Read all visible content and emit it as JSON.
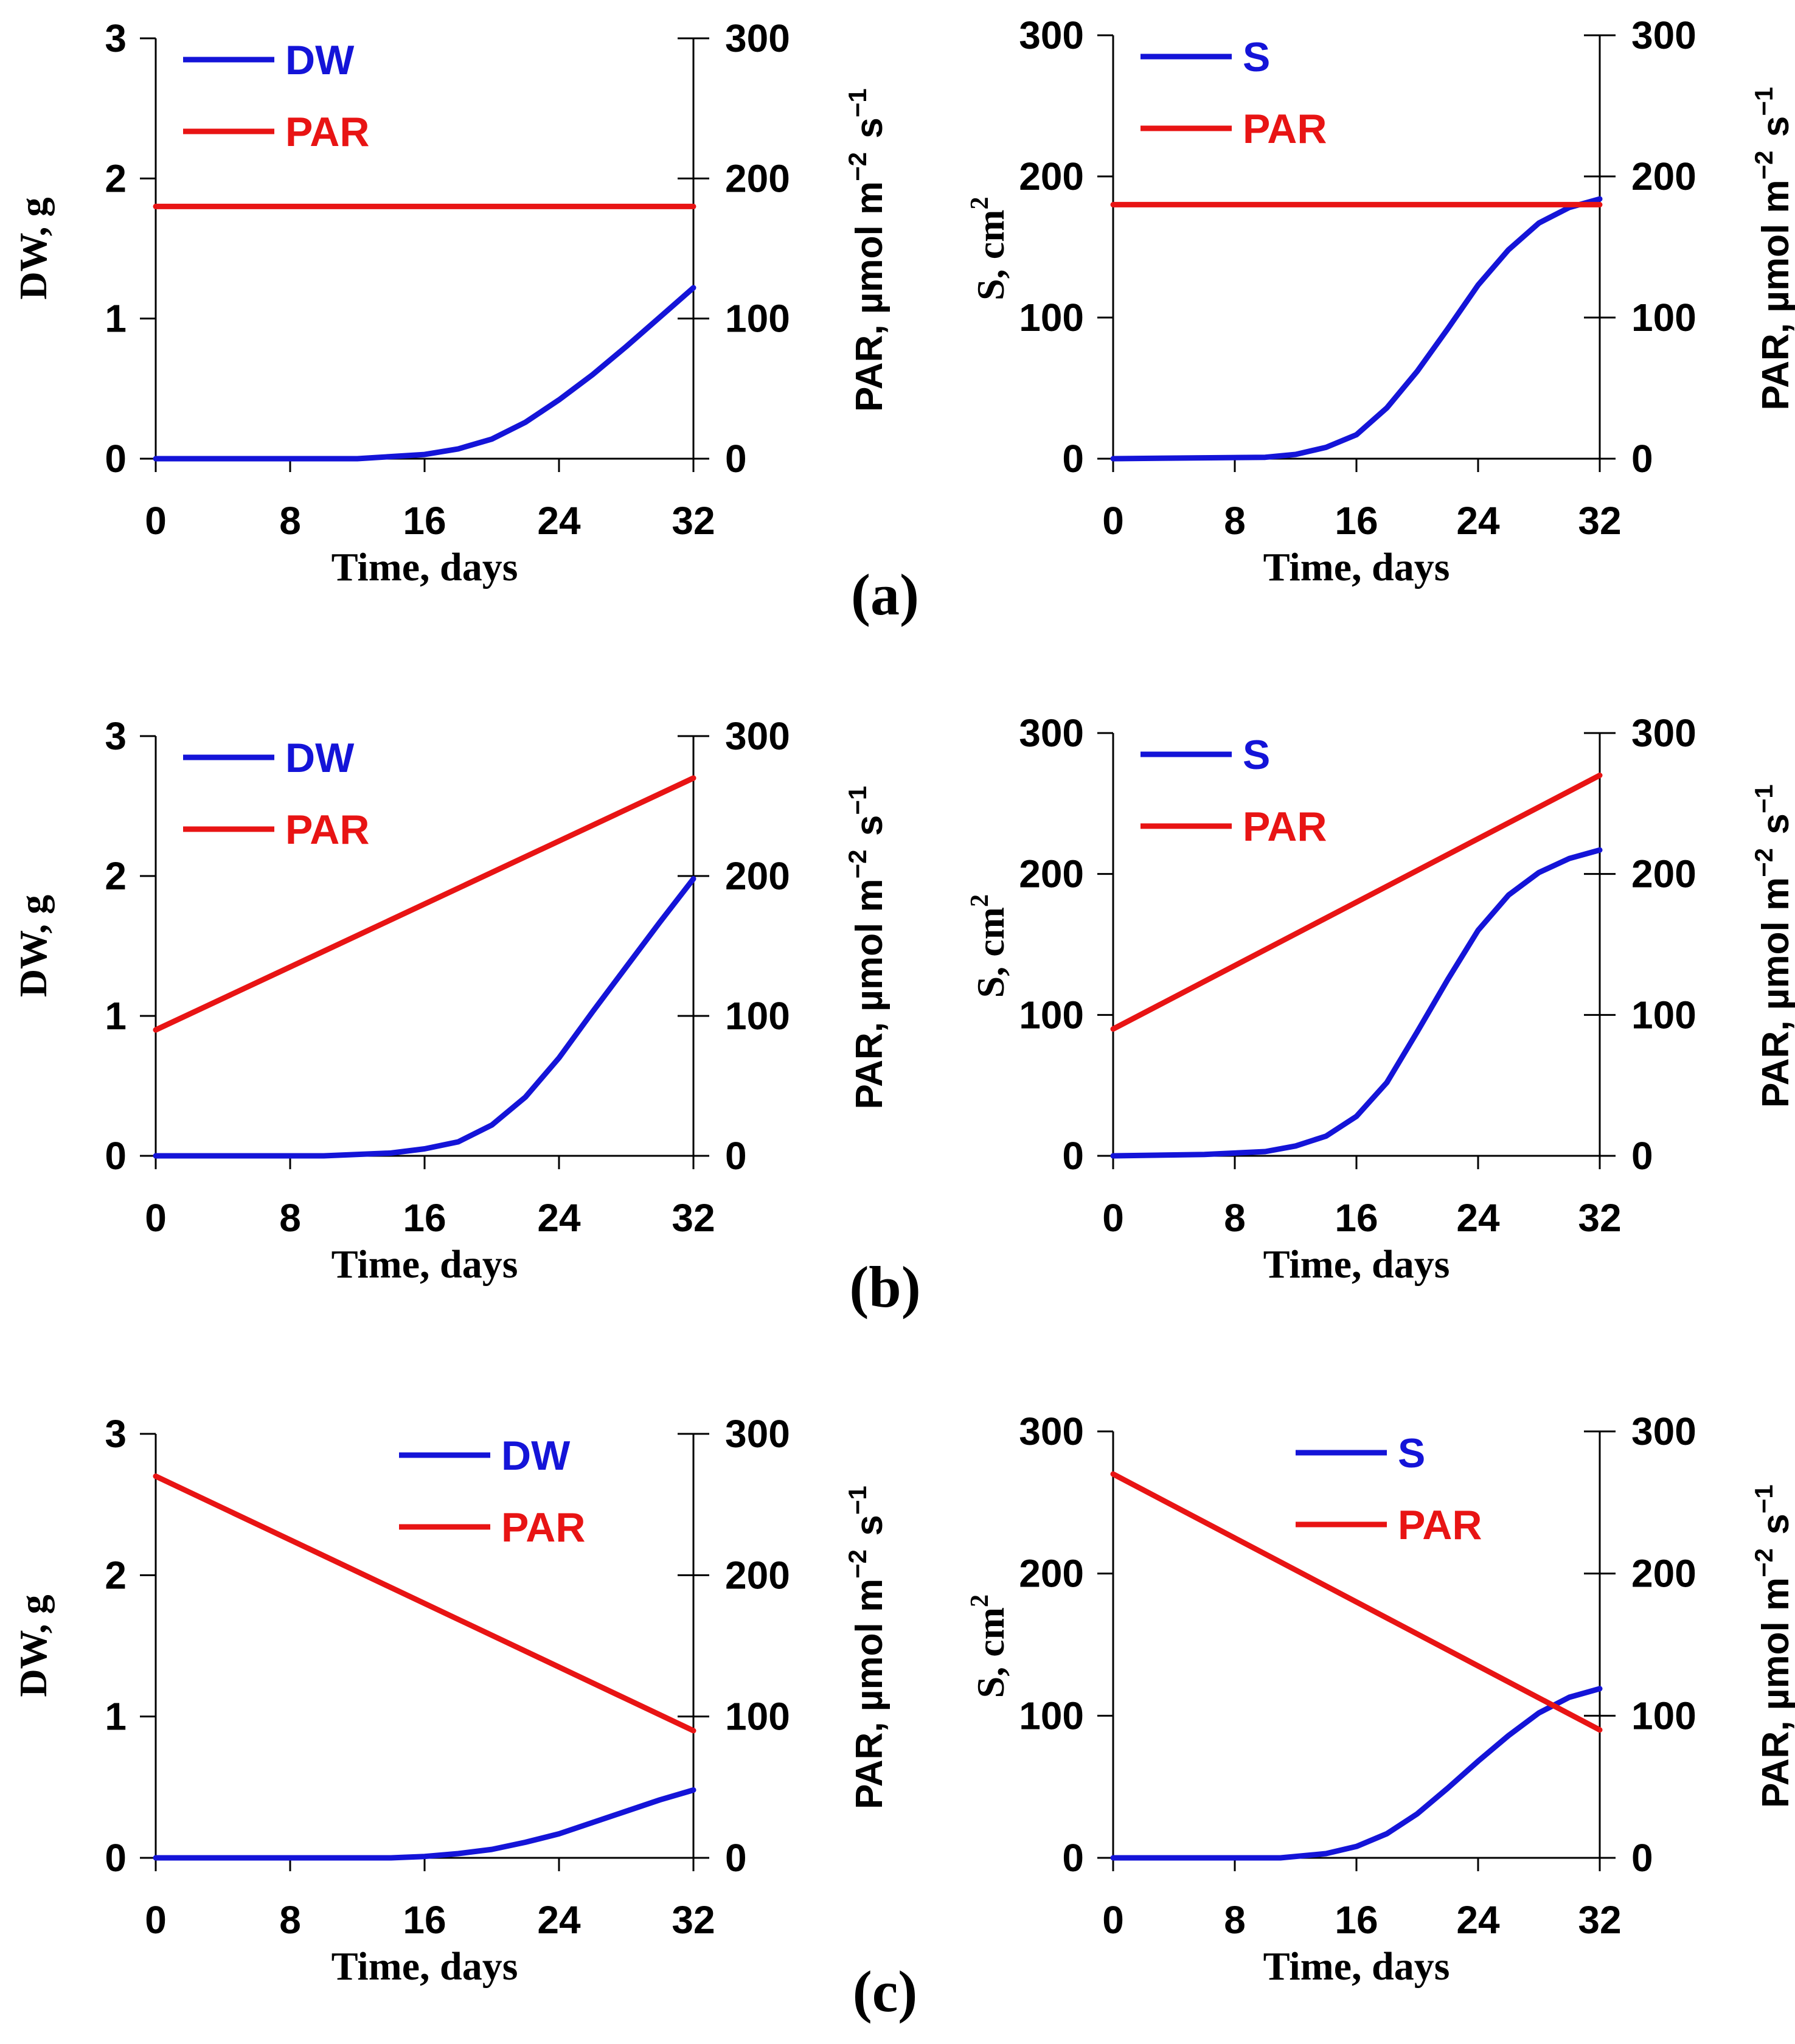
{
  "panels": [
    {
      "label": "(a)"
    },
    {
      "label": "(b)"
    },
    {
      "label": "(c)"
    }
  ],
  "colors": {
    "dw": "#1414d8",
    "s": "#1414d8",
    "par": "#e81414",
    "axis": "#000000"
  },
  "chart_data": [
    {
      "type": "line",
      "id": "a-left",
      "xlabel": "Time, days",
      "ylabel_left": "DW, g",
      "ylabel_right": "PAR, µmol m−2 s−1",
      "xlim": [
        0,
        32
      ],
      "ylim_left": [
        0,
        3
      ],
      "ylim_right": [
        0,
        300
      ],
      "xticks": [
        0,
        8,
        16,
        24,
        32
      ],
      "yticks_left": [
        0,
        1,
        2,
        3
      ],
      "yticks_right": [
        0,
        100,
        200,
        300
      ],
      "legend_position": "top-left",
      "series": [
        {
          "name": "DW",
          "axis": "left",
          "x": [
            0,
            12,
            16,
            18,
            20,
            22,
            24,
            26,
            28,
            30,
            32
          ],
          "y": [
            0,
            0,
            0.03,
            0.07,
            0.14,
            0.26,
            0.42,
            0.6,
            0.8,
            1.01,
            1.22
          ]
        },
        {
          "name": "PAR",
          "axis": "right",
          "x": [
            0,
            32
          ],
          "y": [
            180,
            180
          ]
        }
      ]
    },
    {
      "type": "line",
      "id": "a-right",
      "xlabel": "Time, days",
      "ylabel_left": "S, cm2",
      "ylabel_right": "PAR, µmol m−2 s−1",
      "xlim": [
        0,
        32
      ],
      "ylim_left": [
        0,
        300
      ],
      "ylim_right": [
        0,
        300
      ],
      "xticks": [
        0,
        8,
        16,
        24,
        32
      ],
      "yticks_left": [
        0,
        100,
        200,
        300
      ],
      "yticks_right": [
        0,
        100,
        200,
        300
      ],
      "legend_position": "top-left",
      "series": [
        {
          "name": "S",
          "axis": "left",
          "x": [
            0,
            10,
            12,
            14,
            16,
            18,
            20,
            22,
            24,
            26,
            28,
            30,
            32
          ],
          "y": [
            0,
            1,
            3,
            8,
            17,
            36,
            62,
            92,
            123,
            148,
            167,
            178,
            184
          ]
        },
        {
          "name": "PAR",
          "axis": "right",
          "x": [
            0,
            32
          ],
          "y": [
            180,
            180
          ]
        }
      ]
    },
    {
      "type": "line",
      "id": "b-left",
      "xlabel": "Time, days",
      "ylabel_left": "DW, g",
      "ylabel_right": "PAR, µmol m−2 s−1",
      "xlim": [
        0,
        32
      ],
      "ylim_left": [
        0,
        3
      ],
      "ylim_right": [
        0,
        300
      ],
      "xticks": [
        0,
        8,
        16,
        24,
        32
      ],
      "yticks_left": [
        0,
        1,
        2,
        3
      ],
      "yticks_right": [
        0,
        100,
        200,
        300
      ],
      "legend_position": "top-left",
      "series": [
        {
          "name": "DW",
          "axis": "left",
          "x": [
            0,
            10,
            14,
            16,
            18,
            20,
            22,
            24,
            26,
            28,
            30,
            32
          ],
          "y": [
            0,
            0,
            0.02,
            0.05,
            0.1,
            0.22,
            0.42,
            0.7,
            1.03,
            1.35,
            1.67,
            1.98
          ]
        },
        {
          "name": "PAR",
          "axis": "right",
          "x": [
            0,
            32
          ],
          "y": [
            90,
            270
          ]
        }
      ]
    },
    {
      "type": "line",
      "id": "b-right",
      "xlabel": "Time, days",
      "ylabel_left": "S, cm2",
      "ylabel_right": "PAR, µmol m−2 s−1",
      "xlim": [
        0,
        32
      ],
      "ylim_left": [
        0,
        300
      ],
      "ylim_right": [
        0,
        300
      ],
      "xticks": [
        0,
        8,
        16,
        24,
        32
      ],
      "yticks_left": [
        0,
        100,
        200,
        300
      ],
      "yticks_right": [
        0,
        100,
        200,
        300
      ],
      "legend_position": "top-left",
      "series": [
        {
          "name": "S",
          "axis": "left",
          "x": [
            0,
            6,
            10,
            12,
            14,
            16,
            18,
            20,
            22,
            24,
            26,
            28,
            30,
            32
          ],
          "y": [
            0,
            1,
            3,
            7,
            14,
            28,
            52,
            88,
            125,
            160,
            185,
            201,
            211,
            217
          ]
        },
        {
          "name": "PAR",
          "axis": "right",
          "x": [
            0,
            32
          ],
          "y": [
            90,
            270
          ]
        }
      ]
    },
    {
      "type": "line",
      "id": "c-left",
      "xlabel": "Time, days",
      "ylabel_left": "DW, g",
      "ylabel_right": "PAR, µmol m−2 s−1",
      "xlim": [
        0,
        32
      ],
      "ylim_left": [
        0,
        3
      ],
      "ylim_right": [
        0,
        300
      ],
      "xticks": [
        0,
        8,
        16,
        24,
        32
      ],
      "yticks_left": [
        0,
        1,
        2,
        3
      ],
      "yticks_right": [
        0,
        100,
        200,
        300
      ],
      "legend_position": "top-right",
      "series": [
        {
          "name": "DW",
          "axis": "left",
          "x": [
            0,
            14,
            16,
            18,
            20,
            22,
            24,
            26,
            28,
            30,
            32
          ],
          "y": [
            0,
            0,
            0.01,
            0.03,
            0.06,
            0.11,
            0.17,
            0.25,
            0.33,
            0.41,
            0.48
          ]
        },
        {
          "name": "PAR",
          "axis": "right",
          "x": [
            0,
            32
          ],
          "y": [
            270,
            90
          ]
        }
      ]
    },
    {
      "type": "line",
      "id": "c-right",
      "xlabel": "Time, days",
      "ylabel_left": "S, cm2",
      "ylabel_right": "PAR, µmol m−2 s−1",
      "xlim": [
        0,
        32
      ],
      "ylim_left": [
        0,
        300
      ],
      "ylim_right": [
        0,
        300
      ],
      "xticks": [
        0,
        8,
        16,
        24,
        32
      ],
      "yticks_left": [
        0,
        100,
        200,
        300
      ],
      "yticks_right": [
        0,
        100,
        200,
        300
      ],
      "legend_position": "top-center",
      "series": [
        {
          "name": "S",
          "axis": "left",
          "x": [
            0,
            11,
            14,
            16,
            18,
            20,
            22,
            24,
            26,
            28,
            30,
            32
          ],
          "y": [
            0,
            0,
            3,
            8,
            17,
            31,
            49,
            68,
            86,
            102,
            113,
            119
          ]
        },
        {
          "name": "PAR",
          "axis": "right",
          "x": [
            0,
            32
          ],
          "y": [
            270,
            90
          ]
        }
      ]
    }
  ]
}
